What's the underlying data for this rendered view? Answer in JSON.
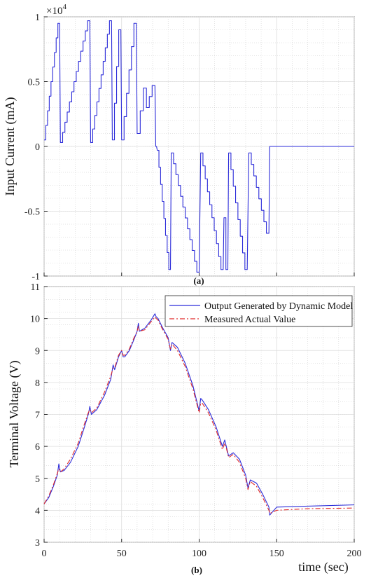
{
  "chart_data": [
    {
      "type": "line",
      "panel_label": "(a)",
      "ylabel": "Input Current (mA)",
      "y_exponent_label": "×10",
      "y_exponent_power": "4",
      "xlim": [
        0,
        200
      ],
      "ylim": [
        -1,
        1
      ],
      "y_scale_factor": 10000,
      "grid": true,
      "xticks": [
        0,
        50,
        100,
        150,
        200
      ],
      "yticks": [
        {
          "value": -1,
          "label": "-1"
        },
        {
          "value": -0.5,
          "label": "-0.5"
        },
        {
          "value": 0,
          "label": "0"
        },
        {
          "value": 0.5,
          "label": "0.5"
        },
        {
          "value": 1,
          "label": "1"
        }
      ],
      "series": [
        {
          "color": "#2b2bd9",
          "style": "staircase",
          "ramps": [
            {
              "t0": 0,
              "t1": 10,
              "v0": 0.05,
              "v1": 0.95,
              "steps": 9
            },
            {
              "t0": 10.5,
              "t1": 29.5,
              "v0": 0.03,
              "v1": 0.97,
              "steps": 13
            },
            {
              "t0": 30,
              "t1": 43.5,
              "v0": 0.03,
              "v1": 0.97,
              "steps": 10
            },
            {
              "t0": 44,
              "t1": 49.5,
              "v0": 0.05,
              "v1": 0.9,
              "steps": 4
            },
            {
              "t0": 50,
              "t1": 59.5,
              "v0": 0.05,
              "v1": 0.95,
              "steps": 6
            },
            {
              "t0": 60,
              "t1": 66,
              "v0": 0.1,
              "v1": 0.45,
              "steps": 3
            },
            {
              "t0": 66,
              "t1": 71.5,
              "v0": 0.3,
              "v1": 0.47,
              "steps": 3
            },
            {
              "t0": 72,
              "t1": 72.5,
              "v0": 0,
              "v1": 0,
              "steps": 1
            },
            {
              "t0": 73,
              "t1": 81.5,
              "v0": -0.03,
              "v1": -0.95,
              "steps": 8
            },
            {
              "t0": 82,
              "t1": 100,
              "v0": -0.05,
              "v1": -0.97,
              "steps": 12
            },
            {
              "t0": 101,
              "t1": 115.5,
              "v0": -0.05,
              "v1": -0.95,
              "steps": 10
            },
            {
              "t0": 116,
              "t1": 118.5,
              "v0": -0.55,
              "v1": -0.95,
              "steps": 2
            },
            {
              "t0": 119,
              "t1": 131,
              "v0": -0.05,
              "v1": -0.95,
              "steps": 8
            },
            {
              "t0": 132,
              "t1": 145,
              "v0": -0.05,
              "v1": -0.67,
              "steps": 8
            },
            {
              "t0": 145.5,
              "t1": 200,
              "v0": 0,
              "v1": 0,
              "steps": 1
            }
          ]
        }
      ]
    },
    {
      "type": "line",
      "panel_label": "(b)",
      "ylabel": "Terminal Voltage (V)",
      "xlabel": "time (sec)",
      "xlim": [
        0,
        200
      ],
      "ylim": [
        3,
        11
      ],
      "grid": true,
      "legend_position": "top-right",
      "xticks": [
        0,
        50,
        100,
        150,
        200
      ],
      "yticks": [
        3,
        4,
        5,
        6,
        7,
        8,
        9,
        10,
        11
      ],
      "series": [
        {
          "name": "Output Generated by Dynamic Model",
          "color": "#2b2bd9",
          "dash": "solid",
          "x": [
            0,
            3,
            6,
            8.5,
            9.5,
            10.5,
            13,
            17,
            22,
            26,
            28.5,
            29.5,
            30.5,
            34,
            39,
            43,
            44.5,
            45.5,
            48,
            50,
            51,
            52,
            55,
            58,
            60,
            60.8,
            61.5,
            65,
            69,
            71.5,
            72.3,
            73.5,
            76,
            80,
            81.5,
            82.5,
            86,
            91,
            96,
            100,
            101,
            102,
            106,
            111,
            115,
            116.5,
            117.5,
            119,
            122,
            126,
            130,
            131.5,
            133,
            137,
            141,
            145,
            145.5,
            150,
            170,
            200
          ],
          "y": [
            4.2,
            4.4,
            4.75,
            5.1,
            5.45,
            5.2,
            5.25,
            5.5,
            6.0,
            6.6,
            7.0,
            7.25,
            7.0,
            7.15,
            7.6,
            8.1,
            8.55,
            8.4,
            8.8,
            9.0,
            8.8,
            8.8,
            9.0,
            9.35,
            9.6,
            9.85,
            9.6,
            9.7,
            9.95,
            10.15,
            10.05,
            10.0,
            9.75,
            9.4,
            9.0,
            9.25,
            9.1,
            8.6,
            7.9,
            7.1,
            7.5,
            7.45,
            7.15,
            6.6,
            6.0,
            6.2,
            6.0,
            5.7,
            5.8,
            5.6,
            5.1,
            4.7,
            4.95,
            4.85,
            4.5,
            4.1,
            3.85,
            4.1,
            4.13,
            4.17
          ]
        },
        {
          "name": "Measured Actual Value",
          "color": "#e02a2a",
          "dash": "dashdot",
          "x": [
            0,
            3,
            6,
            8.5,
            9.5,
            10.5,
            13,
            17,
            22,
            26,
            28.5,
            29.5,
            30.5,
            34,
            39,
            43,
            44.5,
            45.5,
            48,
            50,
            51,
            52,
            55,
            58,
            60,
            60.8,
            61.5,
            65,
            69,
            71.5,
            72.3,
            73.5,
            76,
            80,
            81.5,
            82.5,
            86,
            91,
            96,
            100,
            101,
            102,
            106,
            111,
            115,
            116.5,
            117.5,
            119,
            122,
            126,
            130,
            131.5,
            133,
            137,
            141,
            145,
            145.5,
            150,
            170,
            200
          ],
          "y": [
            4.2,
            4.45,
            4.8,
            5.15,
            5.3,
            5.2,
            5.3,
            5.6,
            6.1,
            6.7,
            7.05,
            7.15,
            7.05,
            7.2,
            7.7,
            8.2,
            8.45,
            8.45,
            8.85,
            9.0,
            8.85,
            8.85,
            9.05,
            9.4,
            9.6,
            9.75,
            9.6,
            9.65,
            9.9,
            10.05,
            10.0,
            9.95,
            9.7,
            9.35,
            9.05,
            9.2,
            9.0,
            8.5,
            7.8,
            7.05,
            7.35,
            7.35,
            7.05,
            6.5,
            5.9,
            6.1,
            5.95,
            5.65,
            5.75,
            5.5,
            5.0,
            4.65,
            4.9,
            4.75,
            4.4,
            4.0,
            3.9,
            4.0,
            4.05,
            4.07
          ]
        }
      ]
    }
  ]
}
